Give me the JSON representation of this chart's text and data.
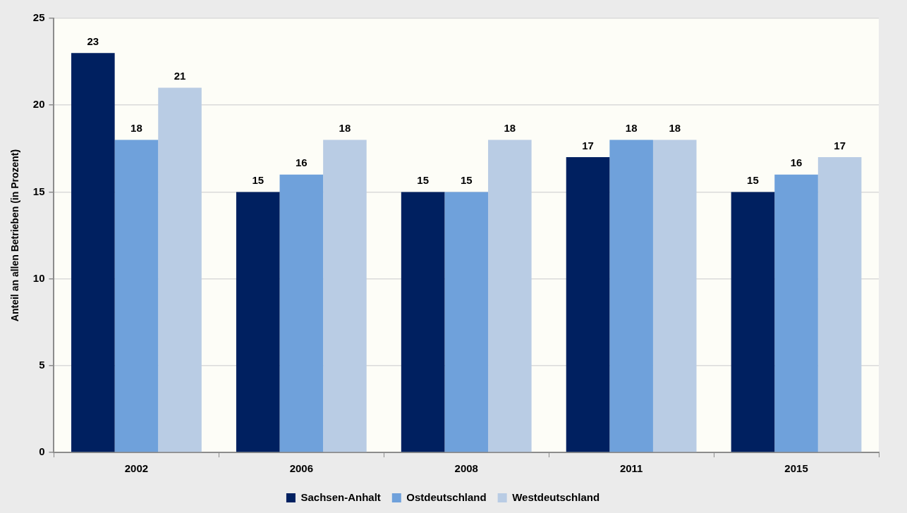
{
  "chart_data": {
    "type": "bar",
    "ylabel": "Anteil an allen Betrieben (in Prozent)",
    "categories": [
      "2002",
      "2006",
      "2008",
      "2011",
      "2015"
    ],
    "series": [
      {
        "name": "Sachsen-Anhalt",
        "color": "#002060",
        "values": [
          23,
          15,
          15,
          17,
          15
        ]
      },
      {
        "name": "Ostdeutschland",
        "color": "#6fa1db",
        "values": [
          18,
          16,
          15,
          18,
          16
        ]
      },
      {
        "name": "Westdeutschland",
        "color": "#b9cce4",
        "values": [
          21,
          18,
          18,
          18,
          17
        ]
      }
    ],
    "ylim": [
      0,
      25
    ],
    "yticks": [
      0,
      5,
      10,
      15,
      20,
      25
    ],
    "grid": "y",
    "legend": "bottom",
    "data_labels": true
  }
}
